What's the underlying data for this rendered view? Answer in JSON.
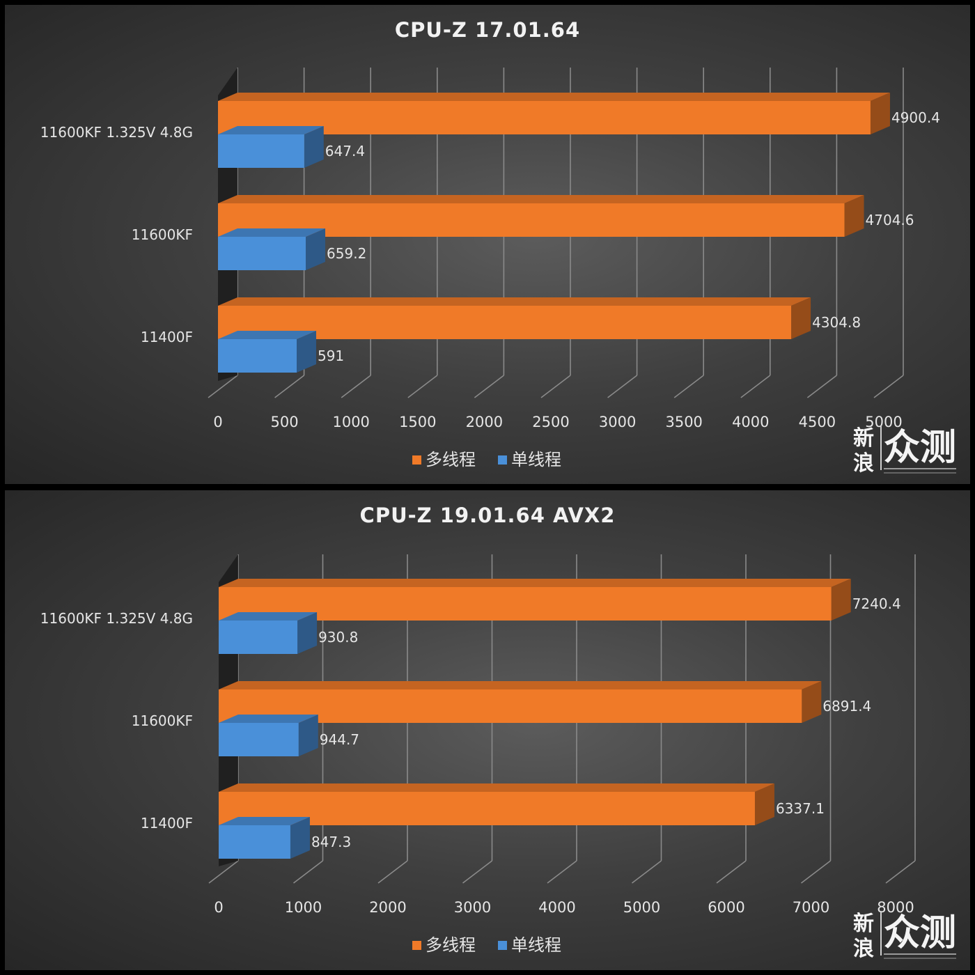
{
  "chart_data": [
    {
      "type": "bar",
      "orientation": "horizontal",
      "title": "CPU-Z  17.01.64",
      "categories": [
        "11600KF 1.325V 4.8G",
        "11600KF",
        "11400F"
      ],
      "series": [
        {
          "name": "多线程",
          "color": "#f07a28",
          "values": [
            4900.4,
            4704.6,
            4304.8
          ],
          "labels": [
            "4900.4",
            "4704.6",
            "4304.8"
          ]
        },
        {
          "name": "单线程",
          "color": "#4a90d9",
          "values": [
            647.4,
            659.2,
            591
          ],
          "labels": [
            "647.4",
            "659.2",
            "591"
          ]
        }
      ],
      "xlim": [
        0,
        5000
      ],
      "xticks": [
        "0",
        "500",
        "1000",
        "1500",
        "2000",
        "2500",
        "3000",
        "3500",
        "4000",
        "4500",
        "5000"
      ],
      "grid": true,
      "legend_position": "bottom"
    },
    {
      "type": "bar",
      "orientation": "horizontal",
      "title": "CPU-Z  19.01.64 AVX2",
      "categories": [
        "11600KF 1.325V 4.8G",
        "11600KF",
        "11400F"
      ],
      "series": [
        {
          "name": "多线程",
          "color": "#f07a28",
          "values": [
            7240.4,
            6891.4,
            6337.1
          ],
          "labels": [
            "7240.4",
            "6891.4",
            "6337.1"
          ]
        },
        {
          "name": "单线程",
          "color": "#4a90d9",
          "values": [
            930.8,
            944.7,
            847.3
          ],
          "labels": [
            "930.8",
            "944.7",
            "847.3"
          ]
        }
      ],
      "xlim": [
        0,
        8000
      ],
      "xticks": [
        "0",
        "1000",
        "2000",
        "3000",
        "4000",
        "5000",
        "6000",
        "7000",
        "8000"
      ],
      "grid": true,
      "legend_position": "bottom"
    }
  ],
  "watermark": {
    "small_top": "新",
    "small_bottom": "浪",
    "big": "众测"
  }
}
